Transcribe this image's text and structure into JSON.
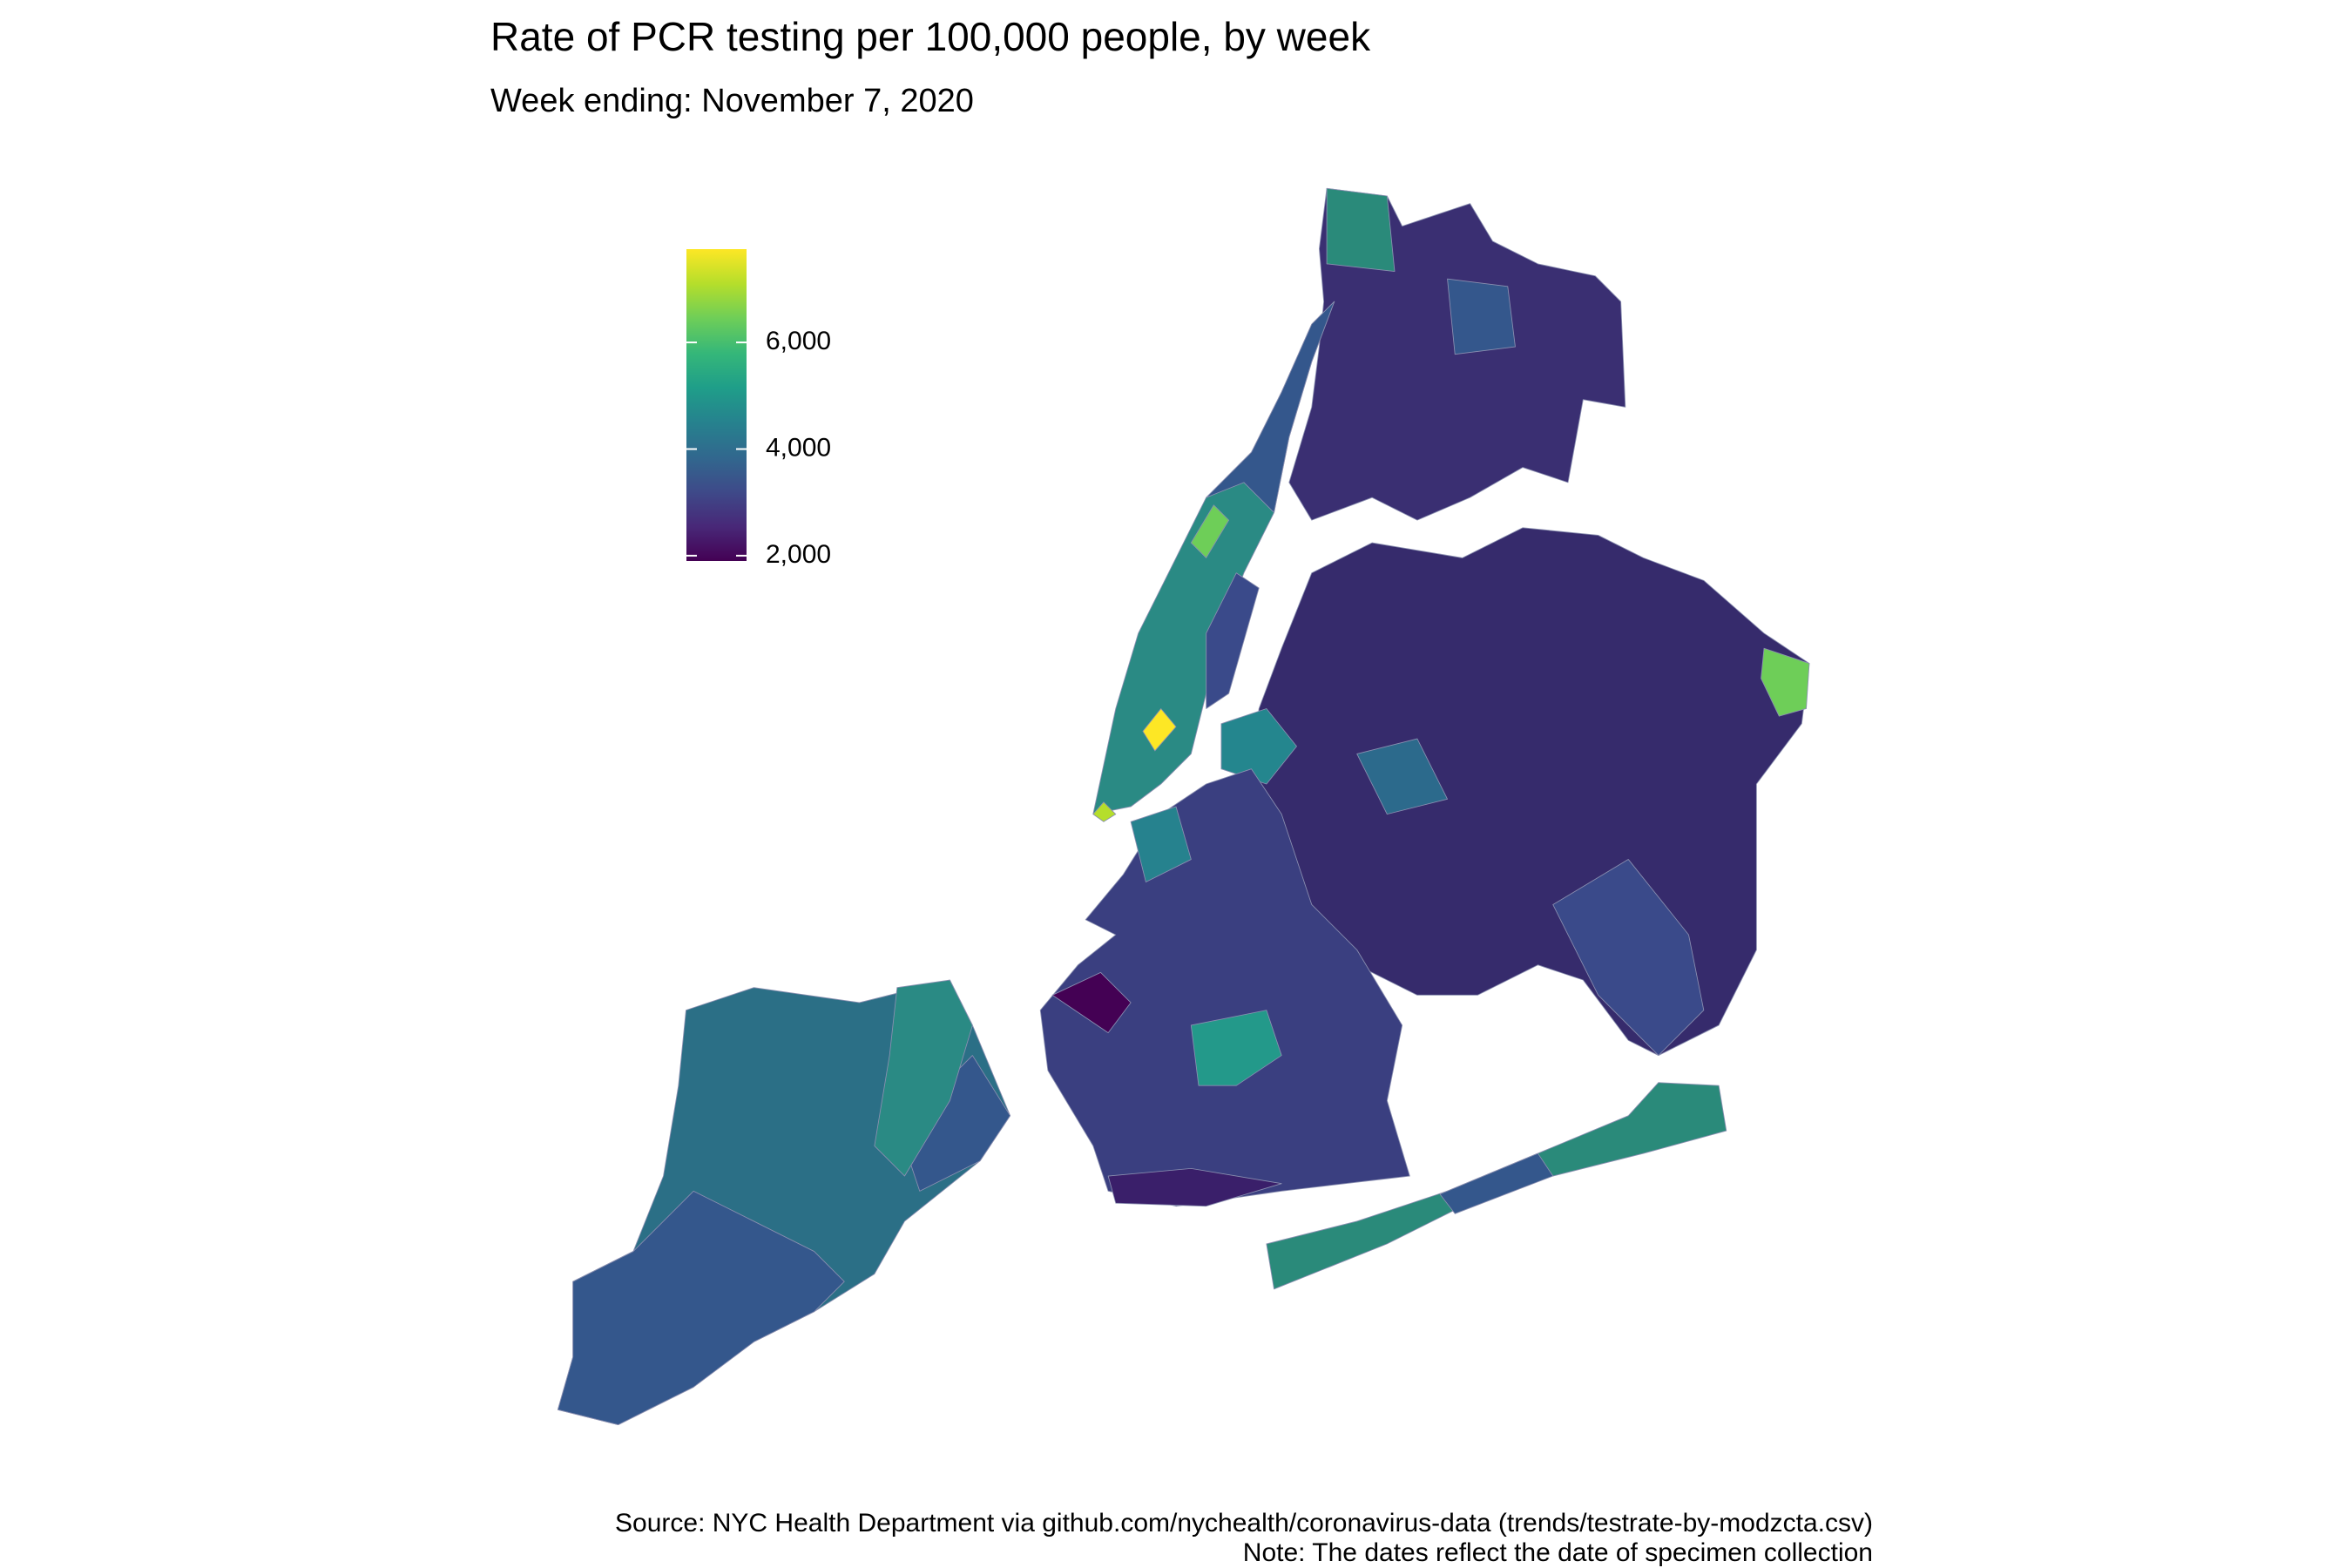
{
  "title": "Rate of PCR testing per 100,000 people, by week",
  "subtitle": "Week ending: November 7, 2020",
  "legend": {
    "lim": [
      1900,
      7750
    ],
    "ticks": [
      {
        "value": 2000,
        "label": "2,000"
      },
      {
        "value": 4000,
        "label": "4,000"
      },
      {
        "value": 6000,
        "label": "6,000"
      }
    ],
    "colors": [
      "#440154",
      "#482878",
      "#3e4a89",
      "#31688e",
      "#26828e",
      "#1f9e89",
      "#35b779",
      "#6ece58",
      "#b5de2b",
      "#fde725"
    ]
  },
  "source": "Source: NYC Health Department via github.com/nychealth/coronavirus-data (trends/testrate-by-modzcta.csv)",
  "note": "Note: The dates reflect the date of specimen collection"
}
